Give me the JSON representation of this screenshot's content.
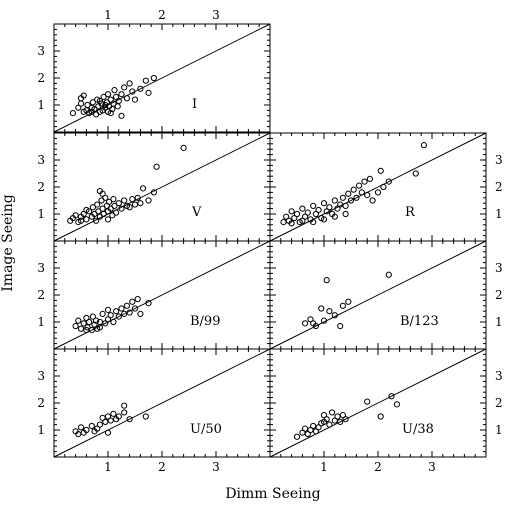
{
  "figure": {
    "xlabel": "Dimm Seeing",
    "ylabel": "Image Seeing"
  },
  "chart_data": {
    "type": "scatter",
    "grid": false,
    "xlabel": "Dimm Seeing",
    "ylabel": "Image Seeing",
    "xlim": [
      0,
      4
    ],
    "ylim": [
      0,
      4
    ],
    "xticks": [
      1,
      2,
      3
    ],
    "yticks": [
      1,
      2,
      3
    ],
    "reference_line": "y = x",
    "panels": [
      {
        "id": "I",
        "label": "I",
        "row": 0,
        "col": 0,
        "top_x_ticks": true,
        "points": [
          [
            0.35,
            0.7
          ],
          [
            0.45,
            0.9
          ],
          [
            0.5,
            1.05
          ],
          [
            0.55,
            0.75
          ],
          [
            0.6,
            0.8
          ],
          [
            0.62,
            1.0
          ],
          [
            0.65,
            0.7
          ],
          [
            0.7,
            0.9
          ],
          [
            0.72,
            1.1
          ],
          [
            0.75,
            0.85
          ],
          [
            0.78,
            0.65
          ],
          [
            0.8,
            1.2
          ],
          [
            0.82,
            0.95
          ],
          [
            0.85,
            0.75
          ],
          [
            0.88,
            1.05
          ],
          [
            0.9,
            0.8
          ],
          [
            0.92,
            1.3
          ],
          [
            0.95,
            0.9
          ],
          [
            0.98,
            1.1
          ],
          [
            1.0,
            0.75
          ],
          [
            1.0,
            1.4
          ],
          [
            1.02,
            0.95
          ],
          [
            1.05,
            1.2
          ],
          [
            1.08,
            0.85
          ],
          [
            1.1,
            1.05
          ],
          [
            1.12,
            1.55
          ],
          [
            1.15,
            1.3
          ],
          [
            1.18,
            0.95
          ],
          [
            1.2,
            1.15
          ],
          [
            1.25,
            1.4
          ],
          [
            1.3,
            1.65
          ],
          [
            1.35,
            1.25
          ],
          [
            1.4,
            1.8
          ],
          [
            1.45,
            1.5
          ],
          [
            1.5,
            1.2
          ],
          [
            1.6,
            1.6
          ],
          [
            1.7,
            1.9
          ],
          [
            1.75,
            1.45
          ],
          [
            1.85,
            2.0
          ],
          [
            0.55,
            1.35
          ],
          [
            0.5,
            1.25
          ],
          [
            1.25,
            0.6
          ],
          [
            0.95,
            1.0
          ],
          [
            0.85,
            1.15
          ],
          [
            1.05,
            0.7
          ],
          [
            0.7,
            0.75
          ]
        ]
      },
      {
        "id": "V",
        "label": "V",
        "row": 1,
        "col": 0,
        "top_x_ticks": false,
        "points": [
          [
            0.3,
            0.75
          ],
          [
            0.35,
            0.85
          ],
          [
            0.4,
            0.95
          ],
          [
            0.45,
            0.7
          ],
          [
            0.5,
            0.9
          ],
          [
            0.55,
            1.0
          ],
          [
            0.6,
            0.8
          ],
          [
            0.65,
            1.1
          ],
          [
            0.7,
            0.9
          ],
          [
            0.72,
            1.25
          ],
          [
            0.75,
            1.0
          ],
          [
            0.78,
            0.75
          ],
          [
            0.8,
            1.35
          ],
          [
            0.82,
            1.1
          ],
          [
            0.85,
            0.9
          ],
          [
            0.88,
            1.5
          ],
          [
            0.9,
            1.2
          ],
          [
            0.92,
            1.0
          ],
          [
            0.95,
            1.6
          ],
          [
            0.98,
            1.3
          ],
          [
            1.0,
            1.1
          ],
          [
            1.02,
            1.45
          ],
          [
            1.05,
            1.2
          ],
          [
            1.08,
            0.95
          ],
          [
            1.1,
            1.55
          ],
          [
            1.12,
            1.3
          ],
          [
            1.15,
            1.05
          ],
          [
            1.2,
            1.4
          ],
          [
            1.25,
            1.2
          ],
          [
            1.3,
            1.5
          ],
          [
            1.35,
            1.3
          ],
          [
            1.4,
            1.25
          ],
          [
            1.45,
            1.55
          ],
          [
            1.5,
            1.35
          ],
          [
            1.55,
            1.6
          ],
          [
            1.6,
            1.4
          ],
          [
            1.65,
            1.95
          ],
          [
            1.75,
            1.5
          ],
          [
            1.85,
            1.8
          ],
          [
            1.9,
            2.75
          ],
          [
            2.4,
            3.45
          ],
          [
            0.85,
            1.85
          ],
          [
            0.9,
            1.75
          ],
          [
            1.0,
            0.8
          ],
          [
            0.6,
            1.15
          ],
          [
            0.5,
            0.75
          ]
        ]
      },
      {
        "id": "R",
        "label": "R",
        "row": 1,
        "col": 1,
        "top_x_ticks": false,
        "points": [
          [
            0.25,
            0.7
          ],
          [
            0.3,
            0.9
          ],
          [
            0.35,
            0.75
          ],
          [
            0.4,
            1.1
          ],
          [
            0.45,
            0.85
          ],
          [
            0.5,
            1.0
          ],
          [
            0.55,
            0.7
          ],
          [
            0.6,
            1.2
          ],
          [
            0.65,
            0.9
          ],
          [
            0.7,
            1.05
          ],
          [
            0.75,
            0.8
          ],
          [
            0.8,
            1.3
          ],
          [
            0.85,
            1.0
          ],
          [
            0.9,
            1.15
          ],
          [
            0.95,
            0.85
          ],
          [
            1.0,
            1.4
          ],
          [
            1.05,
            1.1
          ],
          [
            1.1,
            1.25
          ],
          [
            1.15,
            1.0
          ],
          [
            1.2,
            1.5
          ],
          [
            1.25,
            1.2
          ],
          [
            1.3,
            1.35
          ],
          [
            1.35,
            1.6
          ],
          [
            1.4,
            1.3
          ],
          [
            1.45,
            1.75
          ],
          [
            1.5,
            1.5
          ],
          [
            1.55,
            1.9
          ],
          [
            1.6,
            1.6
          ],
          [
            1.65,
            2.05
          ],
          [
            1.7,
            1.8
          ],
          [
            1.75,
            2.2
          ],
          [
            1.8,
            1.7
          ],
          [
            1.85,
            2.3
          ],
          [
            1.9,
            1.5
          ],
          [
            2.0,
            1.8
          ],
          [
            2.05,
            2.6
          ],
          [
            2.1,
            2.0
          ],
          [
            2.2,
            2.2
          ],
          [
            2.7,
            2.5
          ],
          [
            2.85,
            3.55
          ],
          [
            0.4,
            0.65
          ],
          [
            0.6,
            0.75
          ],
          [
            0.8,
            0.7
          ],
          [
            1.0,
            0.8
          ],
          [
            1.2,
            0.9
          ],
          [
            1.4,
            1.0
          ]
        ]
      },
      {
        "id": "B99",
        "label": "B/99",
        "row": 2,
        "col": 0,
        "top_x_ticks": false,
        "points": [
          [
            0.4,
            0.85
          ],
          [
            0.45,
            1.05
          ],
          [
            0.5,
            0.75
          ],
          [
            0.55,
            0.95
          ],
          [
            0.6,
            1.15
          ],
          [
            0.62,
            0.8
          ],
          [
            0.65,
            1.0
          ],
          [
            0.7,
            0.7
          ],
          [
            0.72,
            1.2
          ],
          [
            0.75,
            0.9
          ],
          [
            0.78,
            1.05
          ],
          [
            0.8,
            0.75
          ],
          [
            0.85,
            1.0
          ],
          [
            0.9,
            1.3
          ],
          [
            0.95,
            0.95
          ],
          [
            1.0,
            1.1
          ],
          [
            1.0,
            1.45
          ],
          [
            1.05,
            1.25
          ],
          [
            1.1,
            1.0
          ],
          [
            1.15,
            1.4
          ],
          [
            1.2,
            1.2
          ],
          [
            1.25,
            1.5
          ],
          [
            1.3,
            1.3
          ],
          [
            1.35,
            1.6
          ],
          [
            1.4,
            1.35
          ],
          [
            1.45,
            1.75
          ],
          [
            1.5,
            1.5
          ],
          [
            1.55,
            1.85
          ],
          [
            1.6,
            1.3
          ],
          [
            1.75,
            1.7
          ],
          [
            0.6,
            0.7
          ],
          [
            0.85,
            0.8
          ]
        ]
      },
      {
        "id": "B123",
        "label": "B/123",
        "row": 2,
        "col": 1,
        "top_x_ticks": false,
        "points": [
          [
            0.65,
            0.95
          ],
          [
            0.75,
            1.1
          ],
          [
            0.85,
            0.85
          ],
          [
            0.95,
            1.5
          ],
          [
            1.0,
            1.05
          ],
          [
            1.05,
            2.55
          ],
          [
            1.1,
            1.4
          ],
          [
            1.2,
            1.25
          ],
          [
            1.3,
            0.85
          ],
          [
            1.35,
            1.6
          ],
          [
            1.45,
            1.75
          ],
          [
            2.2,
            2.75
          ],
          [
            0.8,
            0.95
          ]
        ]
      },
      {
        "id": "U50",
        "label": "U/50",
        "row": 3,
        "col": 0,
        "top_x_ticks": false,
        "points": [
          [
            0.4,
            0.95
          ],
          [
            0.45,
            0.85
          ],
          [
            0.5,
            1.1
          ],
          [
            0.55,
            0.9
          ],
          [
            0.6,
            1.0
          ],
          [
            0.7,
            1.15
          ],
          [
            0.75,
            0.95
          ],
          [
            0.8,
            1.05
          ],
          [
            0.85,
            1.2
          ],
          [
            0.9,
            1.45
          ],
          [
            0.95,
            1.3
          ],
          [
            1.0,
            1.5
          ],
          [
            1.0,
            0.9
          ],
          [
            1.05,
            1.35
          ],
          [
            1.1,
            1.6
          ],
          [
            1.15,
            1.4
          ],
          [
            1.2,
            1.5
          ],
          [
            1.3,
            1.9
          ],
          [
            1.3,
            1.65
          ],
          [
            1.4,
            1.4
          ],
          [
            1.7,
            1.5
          ]
        ]
      },
      {
        "id": "U38",
        "label": "U/38",
        "row": 3,
        "col": 1,
        "top_x_ticks": false,
        "points": [
          [
            0.5,
            0.75
          ],
          [
            0.6,
            0.9
          ],
          [
            0.65,
            1.05
          ],
          [
            0.7,
            0.85
          ],
          [
            0.75,
            1.0
          ],
          [
            0.8,
            1.15
          ],
          [
            0.85,
            0.95
          ],
          [
            0.9,
            1.1
          ],
          [
            0.95,
            1.25
          ],
          [
            1.0,
            1.55
          ],
          [
            1.0,
            1.3
          ],
          [
            1.05,
            1.4
          ],
          [
            1.1,
            1.2
          ],
          [
            1.15,
            1.65
          ],
          [
            1.2,
            1.35
          ],
          [
            1.25,
            1.5
          ],
          [
            1.3,
            1.3
          ],
          [
            1.35,
            1.55
          ],
          [
            1.4,
            1.4
          ],
          [
            1.8,
            2.05
          ],
          [
            2.05,
            1.5
          ],
          [
            2.25,
            2.25
          ],
          [
            2.35,
            1.95
          ]
        ]
      }
    ]
  }
}
